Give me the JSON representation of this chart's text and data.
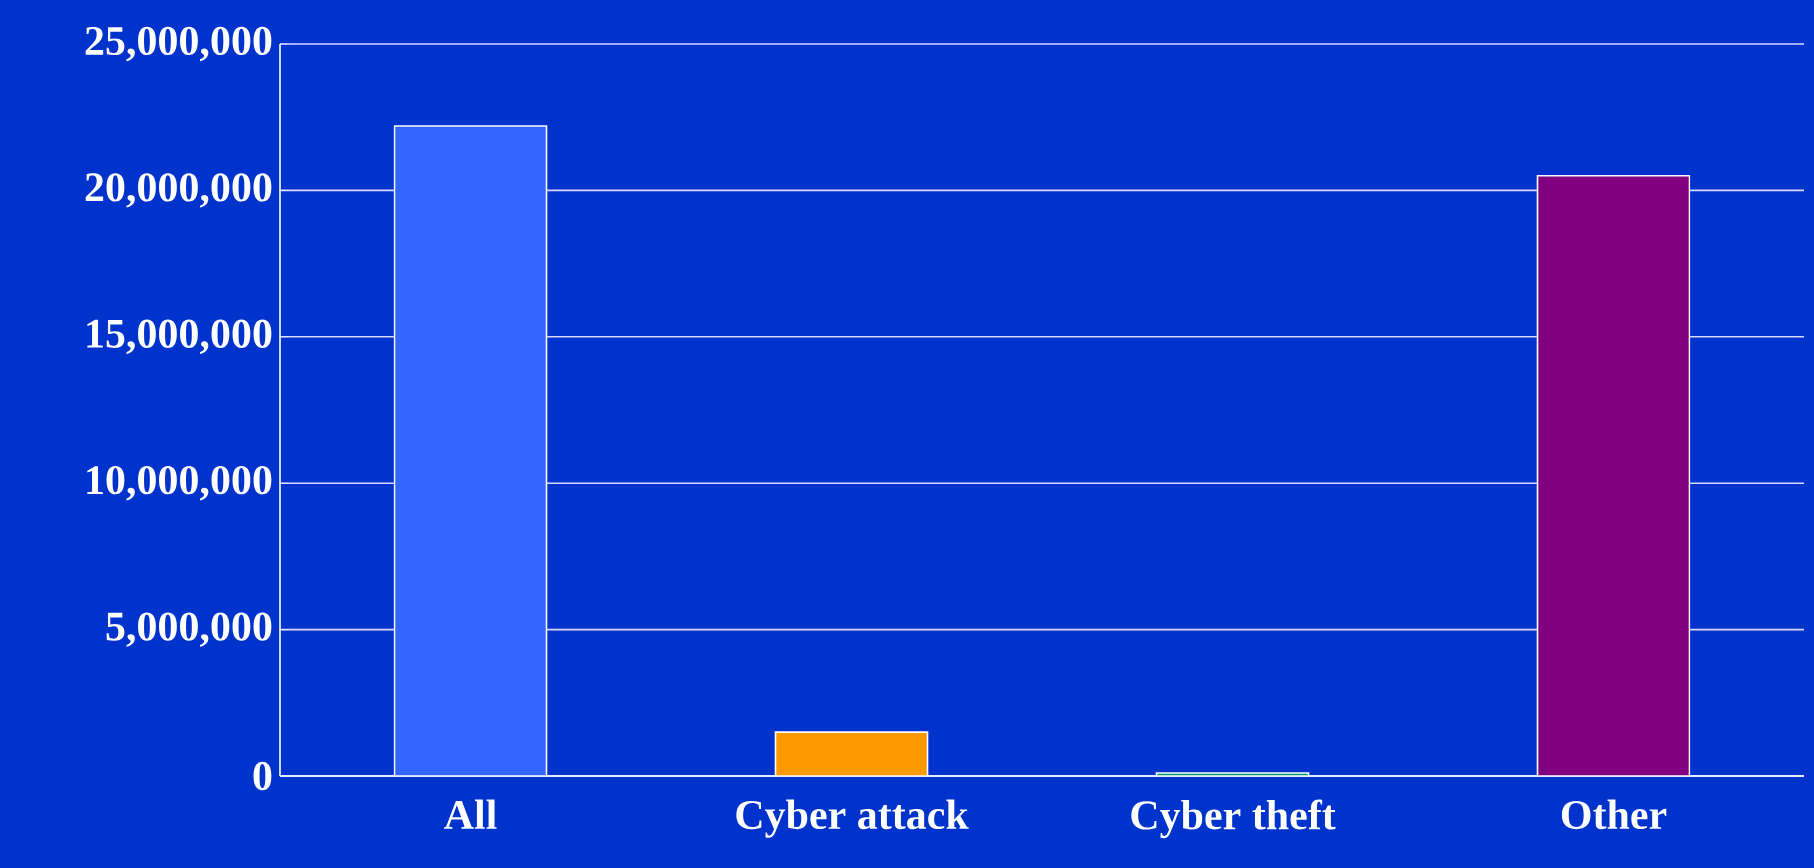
{
  "chart_data": {
    "type": "bar",
    "categories": [
      "All",
      "Cyber attack",
      "Cyber theft",
      "Other"
    ],
    "values": [
      22200000,
      1500000,
      100000,
      20500000
    ],
    "colors": [
      "#3366ff",
      "#ff9900",
      "#009966",
      "#800080"
    ],
    "ylim": [
      0,
      25000000
    ],
    "yticks": [
      0,
      {
        "value": 5000000,
        "label": "5,000,000"
      },
      {
        "value": 10000000,
        "label": "10,000,000"
      },
      {
        "value": 15000000,
        "label": "15,000,000"
      },
      {
        "value": 20000000,
        "label": "20,000,000"
      },
      {
        "value": 25000000,
        "label": "25,000,000"
      }
    ],
    "grid": "y"
  }
}
